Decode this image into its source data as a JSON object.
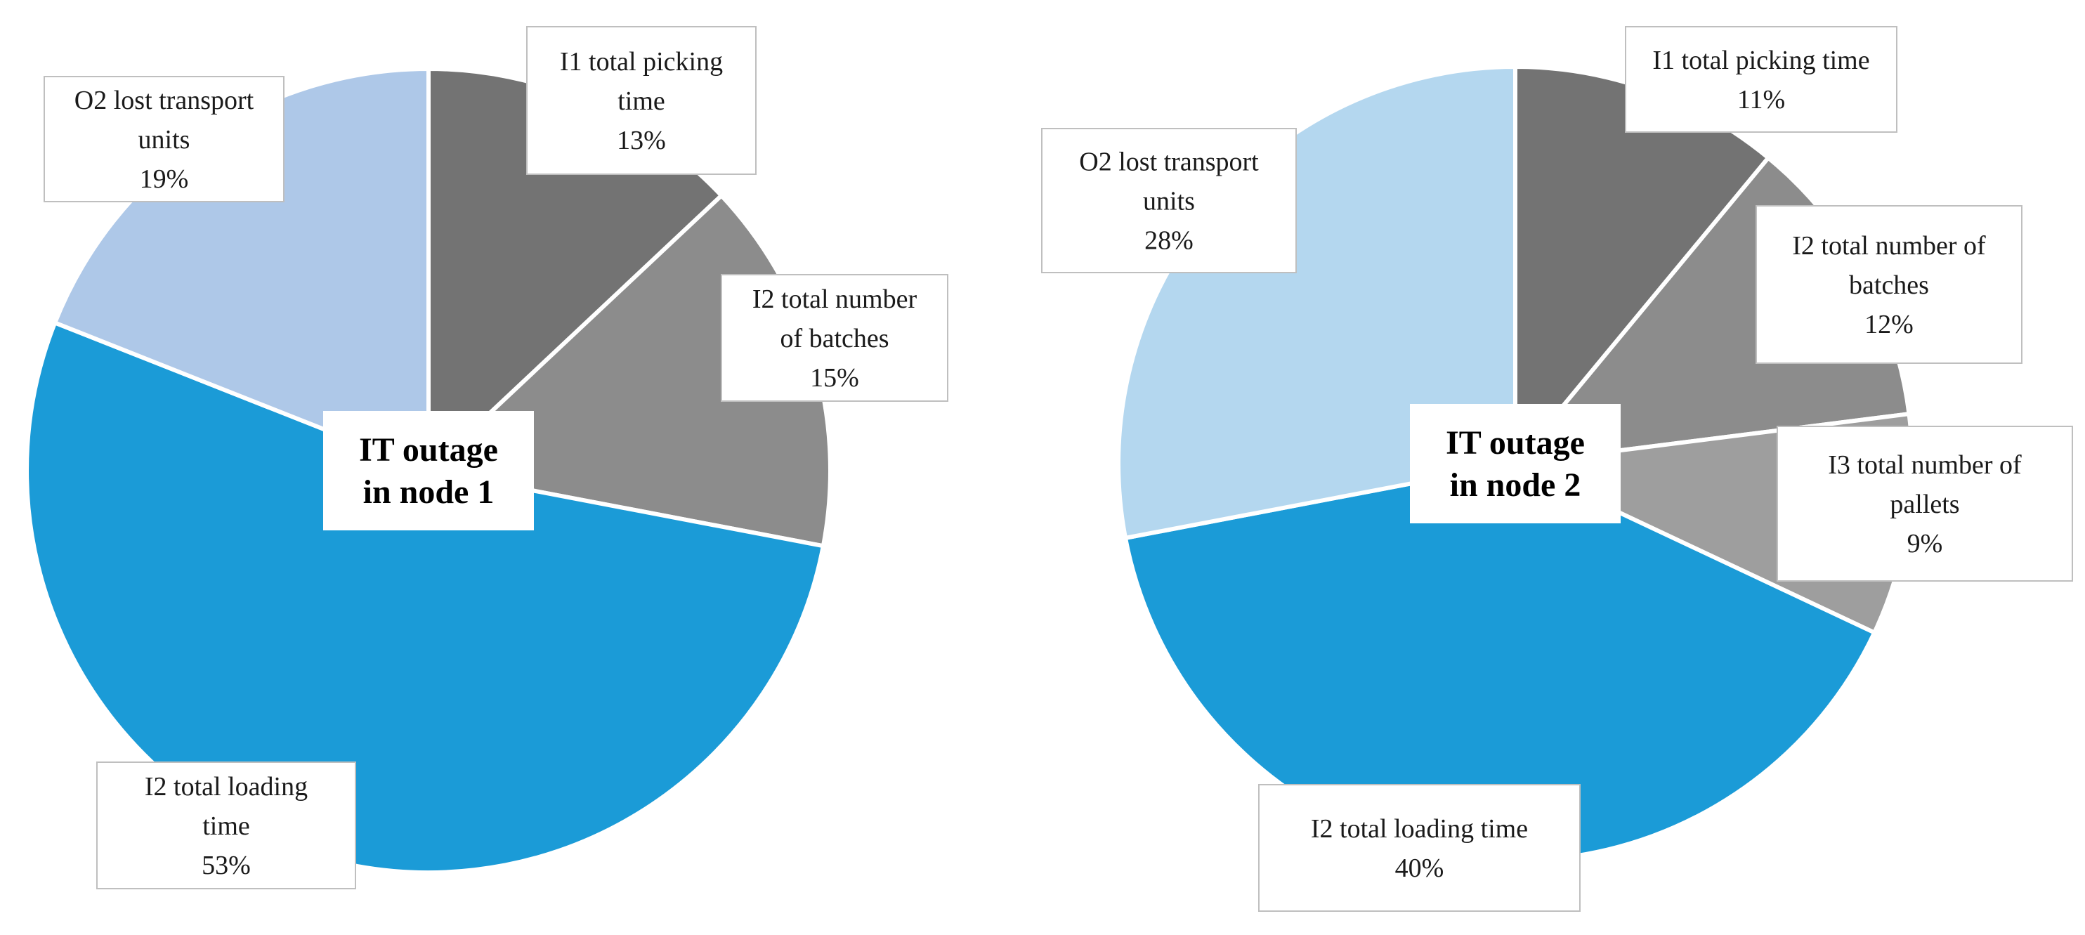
{
  "chart_data": [
    {
      "type": "pie",
      "title": "IT outage in node 1",
      "center_label": [
        "IT outage",
        "in node 1"
      ],
      "slices": [
        {
          "name": "I1 total picking time",
          "label_lines": [
            "I1 total picking",
            "time"
          ],
          "value": 13,
          "value_label": "13%",
          "color": "#737373"
        },
        {
          "name": "I2 total number of batches",
          "label_lines": [
            "I2 total number",
            "of batches"
          ],
          "value": 15,
          "value_label": "15%",
          "color": "#8c8c8c"
        },
        {
          "name": "I2 total loading time",
          "label_lines": [
            "I2 total loading",
            "time"
          ],
          "value": 53,
          "value_label": "53%",
          "color": "#1b9bd7"
        },
        {
          "name": "O2 lost transport units",
          "label_lines": [
            "O2 lost transport",
            "units"
          ],
          "value": 19,
          "value_label": "19%",
          "color": "#aec8e8"
        }
      ]
    },
    {
      "type": "pie",
      "title": "IT outage in node 2",
      "center_label": [
        "IT outage",
        "in node 2"
      ],
      "slices": [
        {
          "name": "I1 total picking time",
          "label_lines": [
            "I1 total picking time"
          ],
          "value": 11,
          "value_label": "11%",
          "color": "#737373"
        },
        {
          "name": "I2 total number of batches",
          "label_lines": [
            "I2 total number of",
            "batches"
          ],
          "value": 12,
          "value_label": "12%",
          "color": "#8c8c8c"
        },
        {
          "name": "I3 total number of pallets",
          "label_lines": [
            "I3 total number of",
            "pallets"
          ],
          "value": 9,
          "value_label": "9%",
          "color": "#9e9e9e"
        },
        {
          "name": "I2 total loading time",
          "label_lines": [
            "I2 total loading time"
          ],
          "value": 40,
          "value_label": "40%",
          "color": "#1b9bd7"
        },
        {
          "name": "O2 lost transport units",
          "label_lines": [
            "O2 lost transport",
            "units"
          ],
          "value": 28,
          "value_label": "28%",
          "color": "#b4d7ef"
        }
      ]
    }
  ],
  "colors": {
    "label_border": "#bfbfbf",
    "slice_separator": "#ffffff"
  }
}
